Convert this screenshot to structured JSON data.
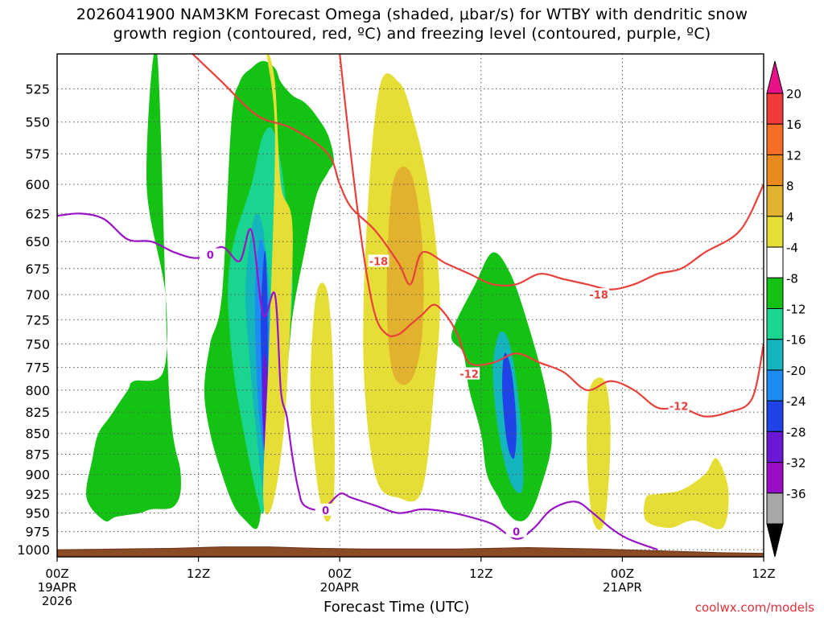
{
  "title_line1": "2026041900 NAM3KM Forecast Omega (shaded, μbar/s) for WTBY with dendritic snow",
  "title_line2": "growth region (contoured, red, ºC) and freezing level (contoured, purple, ºC)",
  "credit": "coolwx.com/models",
  "chart_data": {
    "type": "heatmap",
    "title": "2026041900 NAM3KM Forecast Omega (shaded, μbar/s) for WTBY with dendritic snow growth region (contoured, red, ºC) and freezing level (contoured, purple, ºC)",
    "xlabel": "Forecast Time (UTC)",
    "ylabel": "",
    "xlim": [
      0,
      60
    ],
    "ylim": [
      1010,
      500
    ],
    "y_log_pressure": true,
    "grid": true,
    "x_ticks": [
      {
        "hour": 0,
        "label": "00Z",
        "sub1": "19APR",
        "sub2": "2026"
      },
      {
        "hour": 12,
        "label": "12Z",
        "sub1": "",
        "sub2": ""
      },
      {
        "hour": 24,
        "label": "00Z",
        "sub1": "20APR",
        "sub2": ""
      },
      {
        "hour": 36,
        "label": "12Z",
        "sub1": "",
        "sub2": ""
      },
      {
        "hour": 48,
        "label": "00Z",
        "sub1": "21APR",
        "sub2": ""
      },
      {
        "hour": 60,
        "label": "12Z",
        "sub1": "",
        "sub2": ""
      }
    ],
    "y_ticks": [
      525,
      550,
      575,
      600,
      625,
      650,
      675,
      700,
      725,
      750,
      775,
      800,
      825,
      850,
      875,
      900,
      925,
      950,
      975,
      1000
    ],
    "colorbar": {
      "levels": [
        -36,
        -32,
        -28,
        -24,
        -20,
        -16,
        -12,
        -8,
        -4,
        4,
        8,
        12,
        16,
        20
      ],
      "labels": [
        "20",
        "16",
        "12",
        "8",
        "4",
        "-4",
        "-8",
        "-12",
        "-16",
        "-20",
        "-24",
        "-28",
        "-32",
        "-36"
      ],
      "colors": [
        "#e8118a",
        "#f23a3a",
        "#f66e26",
        "#e88a1e",
        "#e2b12d",
        "#e6de36",
        "#ffffff",
        "#13c213",
        "#19d590",
        "#15b5bd",
        "#1d8cf2",
        "#1f43e6",
        "#6a17d6",
        "#9a0dc7",
        "#a8a8a8",
        "#000000"
      ]
    },
    "shaded_regions": [
      {
        "color": "#13c213",
        "hours": [
          8.5,
          7.6,
          9.2,
          9.0,
          6.5,
          6.0,
          4.5,
          3.5,
          3.0,
          2.5,
          4.0,
          5.0,
          7.0,
          8.0,
          10.0,
          10.5,
          9.5
        ],
        "pressures": [
          500,
          600,
          700,
          780,
          790,
          800,
          830,
          850,
          880,
          930,
          960,
          955,
          950,
          945,
          940,
          900,
          800
        ]
      },
      {
        "color": "#13c213",
        "hours": [
          14.0,
          13.0,
          12.5,
          13.0,
          14.0,
          15.0,
          16.0,
          17.0,
          17.5,
          18.5,
          19.5,
          20.0,
          21.0,
          22.0,
          23.0,
          23.5,
          23.0,
          22.0,
          21.0,
          20.0,
          19.0,
          18.5,
          17.5,
          16.5,
          15.5,
          14.8
        ],
        "pressures": [
          700,
          750,
          800,
          850,
          900,
          940,
          960,
          970,
          930,
          850,
          780,
          720,
          660,
          610,
          590,
          580,
          560,
          545,
          535,
          530,
          520,
          510,
          505,
          510,
          520,
          550
        ]
      },
      {
        "color": "#13c213",
        "hours": [
          33.5,
          34.5,
          35.0,
          36.0,
          36.5,
          37.5,
          38.0,
          39.0,
          40.0,
          41.0,
          42.0,
          41.5,
          40.0,
          38.5,
          37.0,
          35.5
        ],
        "pressures": [
          740,
          760,
          800,
          850,
          900,
          930,
          945,
          960,
          955,
          920,
          860,
          800,
          730,
          680,
          660,
          690
        ]
      },
      {
        "color": "#19d590",
        "hours": [
          15.0,
          14.5,
          15.0,
          16.0,
          17.0,
          17.5,
          18.0,
          19.0,
          20.0,
          19.5,
          18.5,
          17.5,
          16.5
        ],
        "pressures": [
          650,
          700,
          780,
          860,
          930,
          950,
          900,
          800,
          700,
          620,
          560,
          560,
          600
        ]
      },
      {
        "color": "#15b5bd",
        "hours": [
          16.5,
          16.0,
          16.5,
          17.0,
          17.5,
          18.0,
          18.5,
          18.5,
          18.0,
          17.5,
          17.0
        ],
        "pressures": [
          640,
          700,
          790,
          860,
          920,
          900,
          840,
          760,
          690,
          640,
          625
        ]
      },
      {
        "color": "#1d8cf2",
        "hours": [
          17.2,
          16.8,
          17.0,
          17.5,
          17.8,
          18.2,
          18.0,
          17.6
        ],
        "pressures": [
          650,
          700,
          800,
          870,
          880,
          820,
          720,
          660
        ]
      },
      {
        "color": "#1f43e6",
        "hours": [
          17.6,
          17.3,
          17.4,
          17.6,
          17.9,
          17.9,
          17.8
        ],
        "pressures": [
          660,
          720,
          800,
          860,
          850,
          760,
          680
        ]
      },
      {
        "color": "#6a17d6",
        "hours": [
          17.6,
          17.4,
          17.5,
          17.7,
          17.9,
          17.9
        ],
        "pressures": [
          760,
          800,
          850,
          880,
          850,
          790
        ]
      },
      {
        "color": "#15b5bd",
        "hours": [
          37.5,
          37.0,
          37.5,
          38.5,
          39.5,
          39.5,
          39.0,
          38.3
        ],
        "pressures": [
          740,
          780,
          850,
          910,
          920,
          860,
          790,
          745
        ]
      },
      {
        "color": "#1f43e6",
        "hours": [
          38.0,
          37.8,
          38.2,
          38.8,
          39.0,
          38.6
        ],
        "pressures": [
          760,
          800,
          860,
          880,
          840,
          780
        ]
      },
      {
        "color": "#e6de36",
        "hours": [
          17.8,
          18.5,
          19.0,
          20.0,
          19.5,
          18.8,
          18.0,
          17.5,
          18.0,
          18.5
        ],
        "pressures": [
          500,
          520,
          600,
          640,
          800,
          900,
          950,
          920,
          750,
          560
        ]
      },
      {
        "color": "#e6de36",
        "hours": [
          27.5,
          26.5,
          26.0,
          27.0,
          29.0,
          31.0,
          32.0,
          32.5,
          31.5,
          30.0,
          29.0
        ],
        "pressures": [
          520,
          600,
          760,
          900,
          930,
          920,
          800,
          700,
          600,
          540,
          520
        ]
      },
      {
        "color": "#e2b12d",
        "hours": [
          28.5,
          28.0,
          28.5,
          30.0,
          31.0,
          31.0,
          30.0
        ],
        "pressures": [
          600,
          700,
          780,
          790,
          740,
          650,
          590
        ]
      },
      {
        "color": "#e6de36",
        "hours": [
          22.0,
          21.5,
          22.0,
          22.8,
          23.5,
          23.5,
          23.0
        ],
        "pressures": [
          700,
          800,
          900,
          960,
          930,
          800,
          700
        ]
      },
      {
        "color": "#e6de36",
        "hours": [
          45.2,
          45.0,
          45.5,
          46.5,
          47.0,
          46.5
        ],
        "pressures": [
          800,
          880,
          960,
          960,
          850,
          790
        ]
      },
      {
        "color": "#e6de36",
        "hours": [
          50.0,
          50.0,
          52.0,
          54.0,
          56.5,
          57.0,
          56.0,
          55.0,
          53.0,
          51.0
        ],
        "pressures": [
          930,
          960,
          970,
          960,
          970,
          920,
          880,
          900,
          920,
          925
        ]
      }
    ],
    "contours": [
      {
        "name": "",
        "color": "#e8403a",
        "label": "-18",
        "hours": [
          11.5,
          14.0,
          17.0,
          20.0,
          23.0,
          24.0,
          25.0,
          27.0,
          29.0,
          30.0,
          31.0,
          33.0,
          35.0,
          37.0,
          39.0,
          41.0,
          43.0,
          45.0,
          47.0,
          49.0,
          51.0,
          53.0,
          55.0,
          58.0,
          60.0
        ],
        "pressures": [
          500,
          520,
          545,
          555,
          575,
          600,
          620,
          640,
          670,
          690,
          660,
          670,
          680,
          690,
          690,
          680,
          685,
          690,
          695,
          690,
          680,
          675,
          660,
          640,
          600
        ]
      },
      {
        "name": "",
        "color": "#e8403a",
        "label": "-12",
        "hours": [
          24.0,
          25.0,
          26.0,
          27.0,
          28.0,
          29.0,
          30.0,
          31.0,
          32.0,
          33.0,
          34.0,
          35.0,
          37.0,
          39.0,
          41.0,
          43.0,
          45.0,
          47.0,
          49.0,
          51.0,
          53.0,
          55.0,
          57.0,
          59.0,
          60.0
        ],
        "pressures": [
          500,
          580,
          660,
          720,
          740,
          740,
          730,
          720,
          710,
          720,
          740,
          770,
          770,
          760,
          770,
          780,
          800,
          790,
          800,
          820,
          820,
          830,
          825,
          810,
          750
        ]
      },
      {
        "name": "",
        "color": "#9a14c8",
        "label": "0",
        "hours": [
          0.0,
          2.0,
          4.0,
          6.0,
          8.0,
          10.0,
          12.0,
          14.0,
          15.5,
          16.5,
          17.5,
          18.5,
          19.0,
          19.5,
          20.0,
          20.5,
          21.0,
          22.5,
          24.0,
          25.0,
          27.0,
          29.0,
          31.0,
          33.0,
          35.0,
          37.0,
          39.0,
          40.5,
          42.0,
          44.0,
          45.5,
          47.0,
          48.5,
          51.0
        ],
        "pressures": [
          627,
          625,
          630,
          648,
          650,
          660,
          665,
          655,
          668,
          640,
          720,
          700,
          800,
          830,
          880,
          920,
          940,
          945,
          925,
          930,
          940,
          950,
          945,
          948,
          955,
          965,
          985,
          970,
          945,
          935,
          950,
          970,
          985,
          1000
        ]
      }
    ]
  }
}
